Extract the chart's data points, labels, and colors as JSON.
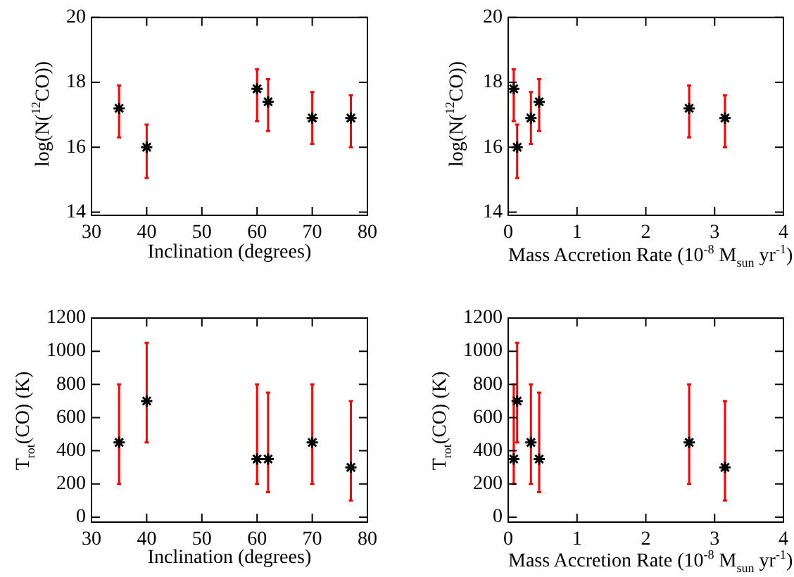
{
  "chart_data": [
    {
      "type": "scatter",
      "xlabel": "Inclination (degrees)",
      "ylabel": "log(N($^{12}$CO))",
      "color": "#000000",
      "marker": "cross",
      "x": [
        35,
        40,
        60,
        62,
        70,
        77
      ],
      "values": [
        17.2,
        16.0,
        17.8,
        17.4,
        16.9,
        16.9
      ],
      "errors": [
        [
          16.3,
          17.9
        ],
        [
          15.05,
          16.7
        ],
        [
          16.8,
          18.4
        ],
        [
          16.5,
          18.1
        ],
        [
          16.1,
          17.7
        ],
        [
          16.0,
          17.6
        ]
      ],
      "xlim": [
        30,
        80
      ],
      "xticks": [
        30,
        40,
        50,
        60,
        70,
        80
      ],
      "ylim": [
        13.9,
        20
      ],
      "yticks": [
        14,
        16,
        18,
        20
      ]
    },
    {
      "type": "scatter",
      "xlabel": "Mass Accretion Rate (10$^{-8}$ M$_{sun}$ yr$^{-1}$)",
      "ylabel": "log(N($^{12}$CO))",
      "color": "#000000",
      "marker": "cross",
      "x": [
        0.08,
        0.13,
        0.33,
        0.45,
        2.63,
        3.15
      ],
      "values": [
        17.8,
        16.0,
        16.9,
        17.4,
        17.2,
        16.9
      ],
      "errors": [
        [
          16.8,
          18.4
        ],
        [
          15.05,
          16.7
        ],
        [
          16.1,
          17.7
        ],
        [
          16.5,
          18.1
        ],
        [
          16.3,
          17.9
        ],
        [
          16.0,
          17.6
        ]
      ],
      "xlim": [
        0,
        4
      ],
      "xticks": [
        0,
        1,
        2,
        3,
        4
      ],
      "ylim": [
        13.9,
        20
      ],
      "yticks": [
        14,
        16,
        18,
        20
      ]
    },
    {
      "type": "scatter",
      "xlabel": "Inclination (degrees)",
      "ylabel": "T$_{rot}$(CO) (K)",
      "color": "#000000",
      "marker": "cross",
      "x": [
        35,
        40,
        60,
        62,
        70,
        77
      ],
      "values": [
        450,
        700,
        350,
        350,
        450,
        300
      ],
      "errors": [
        [
          200,
          800
        ],
        [
          450,
          1050
        ],
        [
          200,
          800
        ],
        [
          150,
          750
        ],
        [
          200,
          800
        ],
        [
          100,
          700
        ]
      ],
      "xlim": [
        30,
        80
      ],
      "xticks": [
        30,
        40,
        50,
        60,
        70,
        80
      ],
      "ylim": [
        -30,
        1200
      ],
      "yticks": [
        0,
        200,
        400,
        600,
        800,
        1000,
        1200
      ]
    },
    {
      "type": "scatter",
      "xlabel": "Mass Accretion Rate (10$^{-8}$ M$_{sun}$ yr$^{-1}$)",
      "ylabel": "T$_{rot}$(CO) (K)",
      "color": "#000000",
      "marker": "cross",
      "x": [
        0.08,
        0.13,
        0.33,
        0.45,
        2.63,
        3.15
      ],
      "values": [
        350,
        700,
        450,
        350,
        450,
        300
      ],
      "errors": [
        [
          200,
          800
        ],
        [
          450,
          1050
        ],
        [
          200,
          800
        ],
        [
          150,
          750
        ],
        [
          200,
          800
        ],
        [
          100,
          700
        ]
      ],
      "xlim": [
        0,
        4
      ],
      "xticks": [
        0,
        1,
        2,
        3,
        4
      ],
      "ylim": [
        -30,
        1200
      ],
      "yticks": [
        0,
        200,
        400,
        600,
        800,
        1000,
        1200
      ]
    }
  ]
}
